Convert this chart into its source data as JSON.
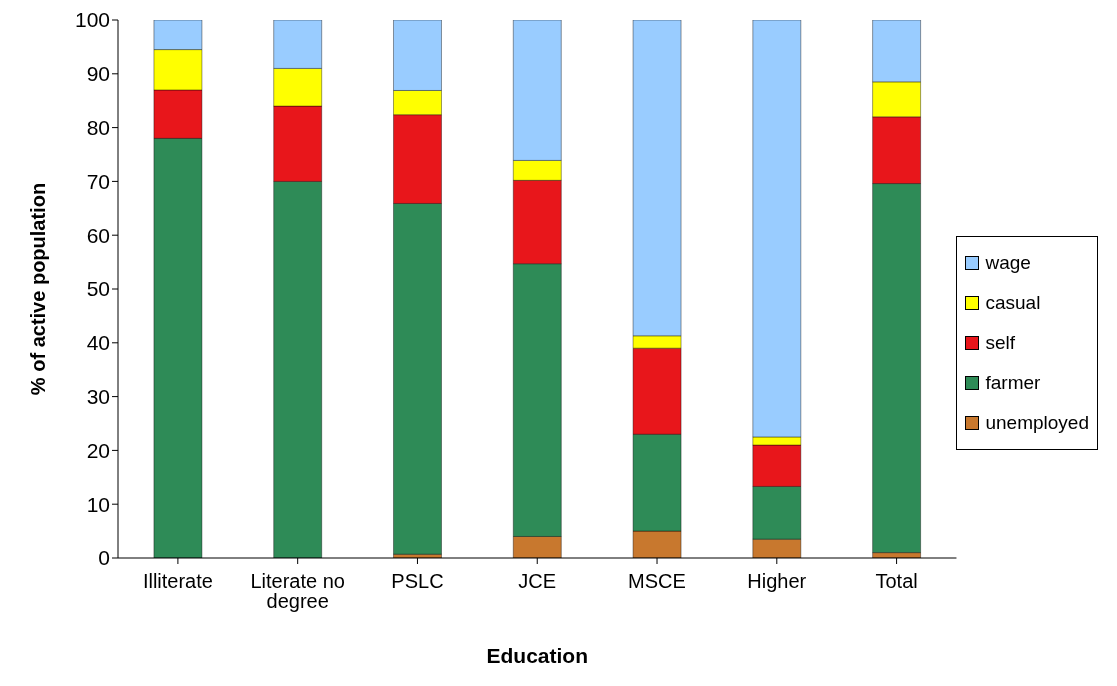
{
  "chart_data": {
    "type": "bar",
    "stacked": true,
    "xlabel": "Education",
    "ylabel": "% of active population",
    "categories": [
      "Illiterate",
      "Literate no degree",
      "PSLC",
      "JCE",
      "MSCE",
      "Higher",
      "Total"
    ],
    "series": [
      {
        "name": "unemployed",
        "color": "#c8782e",
        "values": [
          0,
          0,
          0.7,
          4,
          5,
          3.5,
          1
        ]
      },
      {
        "name": "farmer",
        "color": "#2e8b57",
        "values": [
          78,
          70,
          65.2,
          50.7,
          18,
          9.8,
          68.6
        ]
      },
      {
        "name": "self",
        "color": "#e8161b",
        "values": [
          9,
          14,
          16.5,
          15.5,
          16,
          7.7,
          12.4
        ]
      },
      {
        "name": "casual",
        "color": "#ffff00",
        "values": [
          7.5,
          7,
          4.5,
          3.7,
          2.3,
          1.5,
          6.5
        ]
      },
      {
        "name": "wage",
        "color": "#99ccff",
        "values": [
          5.5,
          9,
          13.1,
          26.1,
          58.7,
          77.5,
          11.5
        ]
      }
    ],
    "ylim": [
      0,
      100
    ],
    "yticks": [
      0,
      10,
      20,
      30,
      40,
      50,
      60,
      70,
      80,
      90,
      100
    ],
    "grid": false,
    "legend": "right"
  }
}
